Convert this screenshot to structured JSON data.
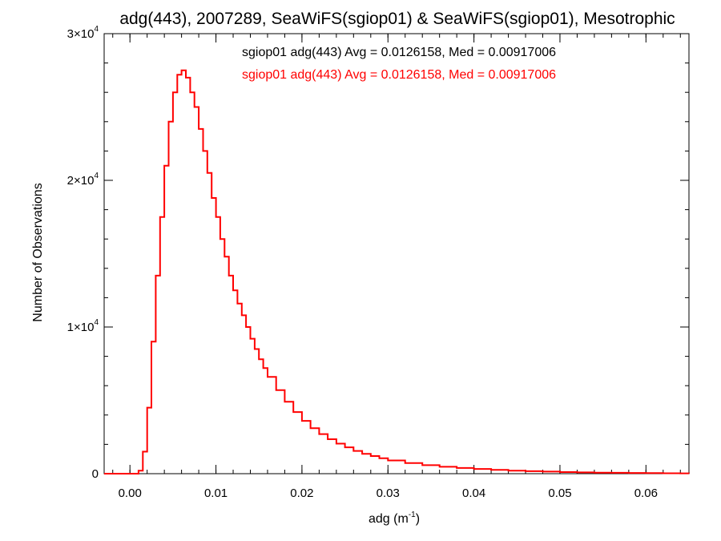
{
  "chart_data": {
    "type": "line",
    "title": "adg(443), 2007289, SeaWiFS(sgiop01) & SeaWiFS(sgiop01), Mesotrophic",
    "xlabel": {
      "base": "adg (m",
      "sup": "-1",
      "tail": ")"
    },
    "ylabel": "Number of Observations",
    "xlim": [
      -0.003,
      0.065
    ],
    "ylim": [
      0,
      30000
    ],
    "x_ticks": [
      {
        "value": 0.0,
        "label": "0.00"
      },
      {
        "value": 0.01,
        "label": "0.01"
      },
      {
        "value": 0.02,
        "label": "0.02"
      },
      {
        "value": 0.03,
        "label": "0.03"
      },
      {
        "value": 0.04,
        "label": "0.04"
      },
      {
        "value": 0.05,
        "label": "0.05"
      },
      {
        "value": 0.06,
        "label": "0.06"
      }
    ],
    "y_ticks": [
      {
        "value": 0,
        "label": "0"
      },
      {
        "value": 10000,
        "label": "1×10",
        "exp": "4"
      },
      {
        "value": 20000,
        "label": "2×10",
        "exp": "4"
      },
      {
        "value": 30000,
        "label": "3×10",
        "exp": "4"
      }
    ],
    "grid": false,
    "annotations": [
      {
        "text": "sgiop01 adg(443) Avg = 0.0126158, Med = 0.00917006",
        "color": "#000000"
      },
      {
        "text": "sgiop01 adg(443) Avg = 0.0126158, Med = 0.00917006",
        "color": "#ff0000"
      }
    ],
    "series": [
      {
        "color": "#ff0000",
        "step": true,
        "x": [
          -0.003,
          0.0,
          0.001,
          0.0015,
          0.002,
          0.0025,
          0.003,
          0.0035,
          0.004,
          0.0045,
          0.005,
          0.0055,
          0.006,
          0.0065,
          0.007,
          0.0075,
          0.008,
          0.0085,
          0.009,
          0.0095,
          0.01,
          0.0105,
          0.011,
          0.0115,
          0.012,
          0.0125,
          0.013,
          0.0135,
          0.014,
          0.0145,
          0.015,
          0.0155,
          0.016,
          0.017,
          0.018,
          0.019,
          0.02,
          0.021,
          0.022,
          0.023,
          0.024,
          0.025,
          0.026,
          0.027,
          0.028,
          0.029,
          0.03,
          0.032,
          0.034,
          0.036,
          0.038,
          0.04,
          0.042,
          0.044,
          0.046,
          0.048,
          0.05,
          0.052,
          0.054,
          0.056,
          0.058,
          0.06,
          0.062,
          0.064,
          0.065
        ],
        "y": [
          0,
          0,
          200,
          1500,
          4500,
          9000,
          13500,
          17500,
          21000,
          24000,
          26000,
          27200,
          27500,
          27000,
          26000,
          25000,
          23500,
          22000,
          20500,
          18800,
          17500,
          16000,
          14800,
          13500,
          12500,
          11600,
          10800,
          10000,
          9200,
          8500,
          7800,
          7200,
          6600,
          5700,
          4900,
          4200,
          3600,
          3100,
          2700,
          2350,
          2050,
          1800,
          1550,
          1350,
          1200,
          1050,
          900,
          720,
          580,
          470,
          390,
          320,
          260,
          210,
          170,
          140,
          110,
          90,
          70,
          60,
          50,
          40,
          30,
          20,
          10
        ]
      }
    ]
  }
}
